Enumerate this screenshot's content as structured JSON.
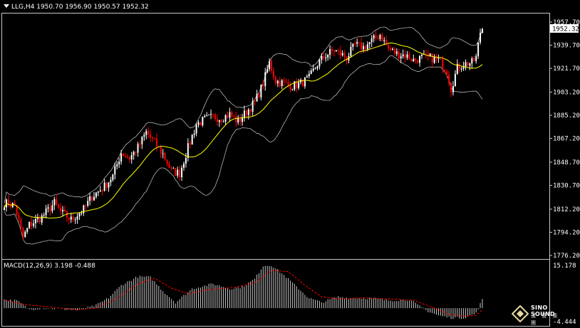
{
  "header": {
    "symbol": "LLG,H4",
    "open": "1950.70",
    "high": "1956.90",
    "low": "1950.57",
    "close": "1952.32"
  },
  "current_price_label": "1952.32",
  "macd": {
    "label": "MACD(12,26,9)",
    "main": "3.198",
    "signal": "-0.488",
    "ymax_label": "15.178",
    "ymin_label": "-4.444"
  },
  "logo": {
    "name": "SINO SOUND",
    "tagline": "漢 聲 集 團"
  },
  "colors": {
    "background": "#000000",
    "bull_candle": "#ffffff",
    "bear_candle": "#ff0000",
    "ma_line": "#ffff00",
    "bands": "#b4b4b4",
    "macd_hist": "#c8c8c8",
    "macd_signal": "#ff0000"
  },
  "chart_data": {
    "type": "candlestick",
    "price_axis": {
      "ylim": [
        1776.2,
        1960.5
      ],
      "ticks": [
        "1957.70",
        "1939.70",
        "1921.70",
        "1903.20",
        "1885.20",
        "1867.20",
        "1848.70",
        "1830.70",
        "1812.20",
        "1794.20",
        "1776.20"
      ]
    },
    "path_anchors": [
      [
        0,
        1817
      ],
      [
        5,
        1815
      ],
      [
        9,
        1790
      ],
      [
        12,
        1800
      ],
      [
        18,
        1806
      ],
      [
        24,
        1817
      ],
      [
        27,
        1810
      ],
      [
        32,
        1804
      ],
      [
        38,
        1812
      ],
      [
        42,
        1822
      ],
      [
        48,
        1830
      ],
      [
        52,
        1838
      ],
      [
        56,
        1856
      ],
      [
        60,
        1852
      ],
      [
        64,
        1860
      ],
      [
        68,
        1872
      ],
      [
        72,
        1864
      ],
      [
        76,
        1855
      ],
      [
        80,
        1842
      ],
      [
        84,
        1840
      ],
      [
        88,
        1860
      ],
      [
        92,
        1878
      ],
      [
        96,
        1882
      ],
      [
        100,
        1884
      ],
      [
        104,
        1883
      ],
      [
        108,
        1886
      ],
      [
        112,
        1880
      ],
      [
        116,
        1888
      ],
      [
        120,
        1895
      ],
      [
        124,
        1910
      ],
      [
        127,
        1926
      ],
      [
        130,
        1912
      ],
      [
        134,
        1910
      ],
      [
        138,
        1908
      ],
      [
        142,
        1910
      ],
      [
        146,
        1914
      ],
      [
        150,
        1925
      ],
      [
        154,
        1932
      ],
      [
        158,
        1936
      ],
      [
        160,
        1934
      ],
      [
        164,
        1930
      ],
      [
        168,
        1940
      ],
      [
        172,
        1938
      ],
      [
        176,
        1943
      ],
      [
        180,
        1948
      ],
      [
        184,
        1937
      ],
      [
        188,
        1933
      ],
      [
        192,
        1932
      ],
      [
        196,
        1928
      ],
      [
        200,
        1930
      ],
      [
        204,
        1930
      ],
      [
        208,
        1928
      ],
      [
        212,
        1920
      ],
      [
        214,
        1906
      ],
      [
        217,
        1922
      ],
      [
        220,
        1925
      ],
      [
        224,
        1926
      ],
      [
        226,
        1930
      ],
      [
        228,
        1950
      ],
      [
        229,
        1952.32
      ]
    ],
    "macd_axis": {
      "ylim": [
        -4.444,
        15.178
      ]
    },
    "macd_anchors": [
      [
        0,
        3
      ],
      [
        6,
        2.6
      ],
      [
        12,
        -0.5
      ],
      [
        18,
        0
      ],
      [
        26,
        -0.2
      ],
      [
        36,
        -0.8
      ],
      [
        44,
        1
      ],
      [
        50,
        3.6
      ],
      [
        56,
        8
      ],
      [
        64,
        11
      ],
      [
        70,
        10.8
      ],
      [
        76,
        6
      ],
      [
        82,
        2
      ],
      [
        90,
        6.8
      ],
      [
        100,
        8.5
      ],
      [
        108,
        6.8
      ],
      [
        114,
        7.4
      ],
      [
        120,
        10.2
      ],
      [
        124,
        14.8
      ],
      [
        128,
        15
      ],
      [
        134,
        11.5
      ],
      [
        140,
        7.5
      ],
      [
        146,
        3.5
      ],
      [
        152,
        2
      ],
      [
        160,
        4
      ],
      [
        166,
        3.5
      ],
      [
        176,
        3.5
      ],
      [
        184,
        2.7
      ],
      [
        194,
        3
      ],
      [
        202,
        -0.8
      ],
      [
        208,
        -2.6
      ],
      [
        214,
        -3.4
      ],
      [
        220,
        -3.4
      ],
      [
        226,
        -1.8
      ],
      [
        229,
        3.198
      ]
    ],
    "signal_anchors": [
      [
        0,
        2.8
      ],
      [
        10,
        1.2
      ],
      [
        20,
        0.6
      ],
      [
        34,
        -0.6
      ],
      [
        44,
        0
      ],
      [
        54,
        3.5
      ],
      [
        64,
        8.5
      ],
      [
        72,
        10.4
      ],
      [
        80,
        7
      ],
      [
        88,
        5
      ],
      [
        98,
        6.5
      ],
      [
        110,
        7.2
      ],
      [
        120,
        8.8
      ],
      [
        128,
        13.2
      ],
      [
        136,
        12.8
      ],
      [
        144,
        8
      ],
      [
        152,
        4
      ],
      [
        160,
        3.2
      ],
      [
        172,
        3.6
      ],
      [
        184,
        3.2
      ],
      [
        196,
        2.8
      ],
      [
        206,
        0
      ],
      [
        214,
        -2.2
      ],
      [
        220,
        -2.8
      ],
      [
        226,
        -2.5
      ],
      [
        229,
        -0.488
      ]
    ]
  }
}
